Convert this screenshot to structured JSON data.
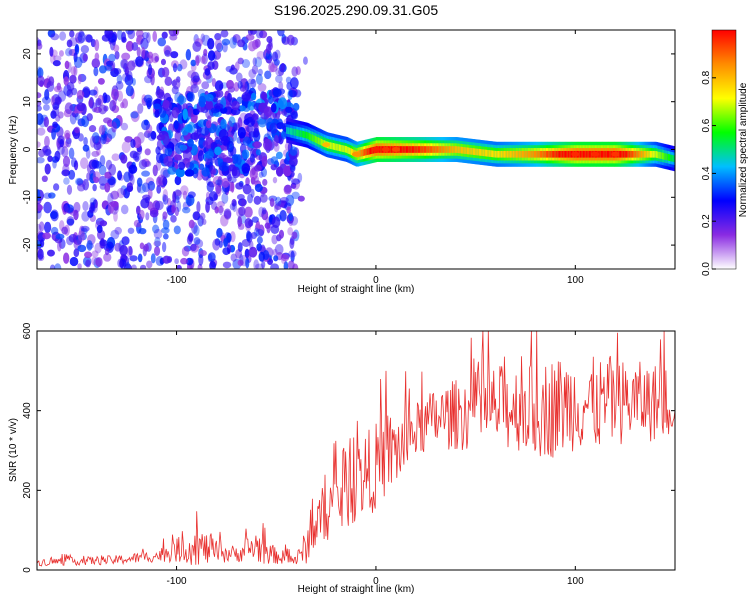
{
  "title": "S196.2025.290.09.31.G05",
  "chart_data": [
    {
      "type": "heatmap",
      "xlabel": "Height of straight line (km)",
      "ylabel": "Frequency (Hz)",
      "xlim": [
        -170,
        150
      ],
      "ylim": [
        -25,
        25
      ],
      "xticks": [
        -100,
        0,
        100
      ],
      "yticks": [
        -20,
        -10,
        0,
        10,
        20
      ],
      "colorbar": {
        "label": "Normalized spectral amplitude",
        "range": [
          0,
          1
        ],
        "ticks": [
          0.0,
          0.2,
          0.4,
          0.6,
          0.8
        ],
        "colormap": [
          "#ffffff",
          "#8a2be2",
          "#0000ff",
          "#00bfff",
          "#00ff00",
          "#ffff00",
          "#ff8c00",
          "#ff0000"
        ]
      },
      "ridge": {
        "x": [
          -45,
          -35,
          -25,
          -15,
          -10,
          0,
          10,
          20,
          40,
          60,
          80,
          100,
          120,
          140,
          150
        ],
        "freq": [
          4,
          3,
          1,
          0,
          -1,
          0,
          0,
          0,
          0,
          -1,
          -1,
          -1,
          -1,
          -1,
          -2
        ],
        "amplitude": [
          0.4,
          0.5,
          0.6,
          0.6,
          0.7,
          0.95,
          0.9,
          0.85,
          0.7,
          0.65,
          0.75,
          0.95,
          0.95,
          0.6,
          0.45
        ]
      }
    },
    {
      "type": "line",
      "xlabel": "Height of straight line (km)",
      "ylabel": "SNR (10 * v/v)",
      "xlim": [
        -170,
        150
      ],
      "ylim": [
        0,
        600
      ],
      "xticks": [
        -100,
        0,
        100
      ],
      "yticks": [
        0,
        200,
        400,
        600
      ],
      "series": [
        {
          "name": "SNR",
          "color": "#e8312f",
          "x": [
            -170,
            -150,
            -130,
            -110,
            -100,
            -90,
            -80,
            -70,
            -60,
            -50,
            -40,
            -35,
            -30,
            -25,
            -20,
            -15,
            -10,
            -5,
            0,
            5,
            10,
            15,
            20,
            30,
            40,
            50,
            60,
            70,
            80,
            90,
            100,
            110,
            120,
            130,
            140,
            150
          ],
          "mean": [
            20,
            22,
            25,
            35,
            50,
            60,
            45,
            40,
            60,
            35,
            25,
            60,
            110,
            150,
            170,
            200,
            220,
            240,
            260,
            290,
            300,
            320,
            350,
            380,
            390,
            400,
            405,
            410,
            400,
            410,
            420,
            415,
            420,
            425,
            420,
            425
          ],
          "spread": [
            10,
            10,
            12,
            15,
            30,
            50,
            30,
            20,
            45,
            20,
            15,
            45,
            70,
            80,
            90,
            100,
            100,
            110,
            110,
            110,
            100,
            90,
            70,
            80,
            90,
            100,
            110,
            110,
            120,
            130,
            120,
            120,
            110,
            100,
            100,
            90
          ]
        }
      ]
    }
  ]
}
